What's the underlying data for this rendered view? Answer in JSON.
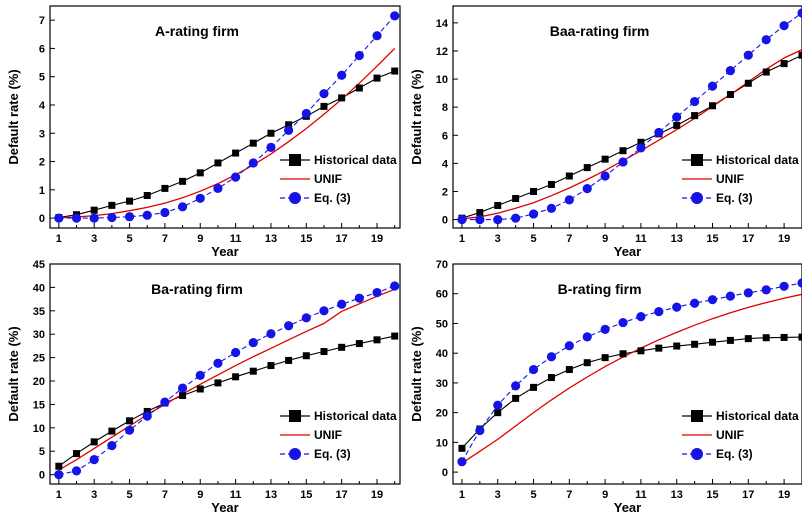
{
  "chart_data": [
    {
      "type": "line",
      "title": "A-rating firm",
      "xlabel": "Year",
      "ylabel": "Default rate (%)",
      "xlim": [
        0.5,
        20.3
      ],
      "ylim": [
        -0.35,
        7.5
      ],
      "xticks": [
        1,
        3,
        5,
        7,
        9,
        11,
        13,
        15,
        17,
        19
      ],
      "yticks": [
        0,
        1,
        2,
        3,
        4,
        5,
        6,
        7
      ],
      "legend_position": "bottom-right",
      "series": [
        {
          "name": "Historical data",
          "color": "#000000",
          "marker": "square",
          "line": "solid",
          "x": [
            1,
            2,
            3,
            4,
            5,
            6,
            7,
            8,
            9,
            10,
            11,
            12,
            13,
            14,
            15,
            16,
            17,
            18,
            19,
            20
          ],
          "values": [
            0.02,
            0.12,
            0.28,
            0.45,
            0.6,
            0.8,
            1.05,
            1.3,
            1.6,
            1.95,
            2.3,
            2.65,
            3.0,
            3.3,
            3.6,
            3.95,
            4.25,
            4.6,
            4.95,
            5.2
          ]
        },
        {
          "name": "UNIF",
          "color": "#e00000",
          "marker": "none",
          "line": "solid",
          "x": [
            1,
            2,
            3,
            4,
            5,
            6,
            7,
            8,
            9,
            10,
            11,
            12,
            13,
            14,
            15,
            16,
            17,
            18,
            19,
            20
          ],
          "values": [
            0.01,
            0.04,
            0.09,
            0.16,
            0.26,
            0.38,
            0.53,
            0.72,
            0.95,
            1.22,
            1.53,
            1.88,
            2.27,
            2.7,
            3.17,
            3.67,
            4.2,
            4.77,
            5.37,
            6.0
          ]
        },
        {
          "name": "Eq. (3)",
          "color": "#1414e6",
          "marker": "circle",
          "line": "dashed",
          "x": [
            1,
            2,
            3,
            4,
            5,
            6,
            7,
            8,
            9,
            10,
            11,
            12,
            13,
            14,
            15,
            16,
            17,
            18,
            19,
            20
          ],
          "values": [
            0.0,
            0.0,
            0.0,
            0.02,
            0.05,
            0.1,
            0.2,
            0.4,
            0.7,
            1.05,
            1.45,
            1.95,
            2.5,
            3.1,
            3.7,
            4.4,
            5.05,
            5.75,
            6.45,
            7.15
          ]
        }
      ]
    },
    {
      "type": "line",
      "title": "Baa-rating firm",
      "xlabel": "Year",
      "ylabel": "Default rate (%)",
      "xlim": [
        0.5,
        20.0
      ],
      "ylim": [
        -0.6,
        15.2
      ],
      "xticks": [
        1,
        3,
        5,
        7,
        9,
        11,
        13,
        15,
        17,
        19
      ],
      "yticks": [
        0,
        2,
        4,
        6,
        8,
        10,
        12,
        14
      ],
      "legend_position": "bottom-right",
      "series": [
        {
          "name": "Historical data",
          "color": "#000000",
          "marker": "square",
          "line": "solid",
          "x": [
            1,
            2,
            3,
            4,
            5,
            6,
            7,
            8,
            9,
            10,
            11,
            12,
            13,
            14,
            15,
            16,
            17,
            18,
            19,
            20
          ],
          "values": [
            0.1,
            0.5,
            1.0,
            1.5,
            2.0,
            2.5,
            3.1,
            3.7,
            4.3,
            4.9,
            5.5,
            6.1,
            6.7,
            7.4,
            8.1,
            8.9,
            9.7,
            10.5,
            11.1,
            11.7
          ]
        },
        {
          "name": "UNIF",
          "color": "#e00000",
          "marker": "none",
          "line": "solid",
          "x": [
            1,
            2,
            3,
            4,
            5,
            6,
            7,
            8,
            9,
            10,
            11,
            12,
            13,
            14,
            15,
            16,
            17,
            18,
            19,
            20
          ],
          "values": [
            0.05,
            0.2,
            0.45,
            0.8,
            1.2,
            1.7,
            2.25,
            2.85,
            3.5,
            4.2,
            4.9,
            5.65,
            6.4,
            7.2,
            8.05,
            8.9,
            9.8,
            10.7,
            11.5,
            12.1
          ]
        },
        {
          "name": "Eq. (3)",
          "color": "#1414e6",
          "marker": "circle",
          "line": "dashed",
          "x": [
            1,
            2,
            3,
            4,
            5,
            6,
            7,
            8,
            9,
            10,
            11,
            12,
            13,
            14,
            15,
            16,
            17,
            18,
            19,
            20
          ],
          "values": [
            0.0,
            0.0,
            0.0,
            0.1,
            0.4,
            0.8,
            1.4,
            2.2,
            3.1,
            4.1,
            5.1,
            6.2,
            7.3,
            8.4,
            9.5,
            10.6,
            11.7,
            12.8,
            13.8,
            14.7
          ]
        }
      ]
    },
    {
      "type": "line",
      "title": "Ba-rating firm",
      "xlabel": "Year",
      "ylabel": "Default rate (%)",
      "xlim": [
        0.5,
        20.3
      ],
      "ylim": [
        -2,
        45
      ],
      "xticks": [
        1,
        3,
        5,
        7,
        9,
        11,
        13,
        15,
        17,
        19
      ],
      "yticks": [
        0,
        5,
        10,
        15,
        20,
        25,
        30,
        35,
        40,
        45
      ],
      "legend_position": "bottom-right",
      "series": [
        {
          "name": "Historical data",
          "color": "#000000",
          "marker": "square",
          "line": "solid",
          "x": [
            1,
            2,
            3,
            4,
            5,
            6,
            7,
            8,
            9,
            10,
            11,
            12,
            13,
            14,
            15,
            16,
            17,
            18,
            19,
            20
          ],
          "values": [
            1.8,
            4.5,
            7.0,
            9.3,
            11.5,
            13.5,
            15.3,
            16.9,
            18.3,
            19.6,
            20.9,
            22.1,
            23.3,
            24.4,
            25.4,
            26.3,
            27.2,
            28.0,
            28.8,
            29.6
          ]
        },
        {
          "name": "UNIF",
          "color": "#e00000",
          "marker": "none",
          "line": "solid",
          "x": [
            1,
            2,
            3,
            4,
            5,
            6,
            7,
            8,
            9,
            10,
            11,
            12,
            13,
            14,
            15,
            16,
            17,
            18,
            19,
            20
          ],
          "values": [
            1.0,
            3.2,
            5.6,
            8.0,
            10.4,
            12.8,
            15.0,
            17.2,
            19.3,
            21.3,
            23.3,
            25.2,
            27.0,
            28.8,
            30.6,
            32.3,
            34.9,
            36.5,
            38.1,
            39.6
          ]
        },
        {
          "name": "Eq. (3)",
          "color": "#1414e6",
          "marker": "circle",
          "line": "dashed",
          "x": [
            1,
            2,
            3,
            4,
            5,
            6,
            7,
            8,
            9,
            10,
            11,
            12,
            13,
            14,
            15,
            16,
            17,
            18,
            19,
            20
          ],
          "values": [
            0.0,
            0.8,
            3.2,
            6.2,
            9.5,
            12.5,
            15.5,
            18.5,
            21.2,
            23.8,
            26.1,
            28.2,
            30.1,
            31.8,
            33.5,
            35.0,
            36.4,
            37.7,
            38.9,
            40.3
          ]
        }
      ]
    },
    {
      "type": "line",
      "title": "B-rating firm",
      "xlabel": "Year",
      "ylabel": "Default rate (%)",
      "xlim": [
        0.5,
        20.0
      ],
      "ylim": [
        -4,
        70
      ],
      "xticks": [
        1,
        3,
        5,
        7,
        9,
        11,
        13,
        15,
        17,
        19
      ],
      "yticks": [
        0,
        10,
        20,
        30,
        40,
        50,
        60,
        70
      ],
      "legend_position": "bottom-right",
      "series": [
        {
          "name": "Historical data",
          "color": "#000000",
          "marker": "square",
          "line": "solid",
          "x": [
            1,
            2,
            3,
            4,
            5,
            6,
            7,
            8,
            9,
            10,
            11,
            12,
            13,
            14,
            15,
            16,
            17,
            18,
            19,
            20
          ],
          "values": [
            8.0,
            14.5,
            20.0,
            24.8,
            28.5,
            31.8,
            34.5,
            36.8,
            38.5,
            39.8,
            40.8,
            41.7,
            42.4,
            43.0,
            43.7,
            44.3,
            44.9,
            45.2,
            45.3,
            45.4
          ]
        },
        {
          "name": "UNIF",
          "color": "#e00000",
          "marker": "none",
          "line": "solid",
          "x": [
            1,
            2,
            3,
            4,
            5,
            6,
            7,
            8,
            9,
            10,
            11,
            12,
            13,
            14,
            15,
            16,
            17,
            18,
            19,
            20
          ],
          "values": [
            3.0,
            7.0,
            11.0,
            15.5,
            20.0,
            24.3,
            28.3,
            32.0,
            35.5,
            38.7,
            41.7,
            44.5,
            47.0,
            49.4,
            51.6,
            53.6,
            55.4,
            57.0,
            58.5,
            59.8
          ]
        },
        {
          "name": "Eq. (3)",
          "color": "#1414e6",
          "marker": "circle",
          "line": "dashed",
          "x": [
            1,
            2,
            3,
            4,
            5,
            6,
            7,
            8,
            9,
            10,
            11,
            12,
            13,
            14,
            15,
            16,
            17,
            18,
            19,
            20
          ],
          "values": [
            3.5,
            14.0,
            22.5,
            29.0,
            34.5,
            38.8,
            42.5,
            45.5,
            48.0,
            50.3,
            52.3,
            54.0,
            55.5,
            56.8,
            58.0,
            59.2,
            60.3,
            61.3,
            62.5,
            63.6
          ]
        }
      ]
    }
  ]
}
